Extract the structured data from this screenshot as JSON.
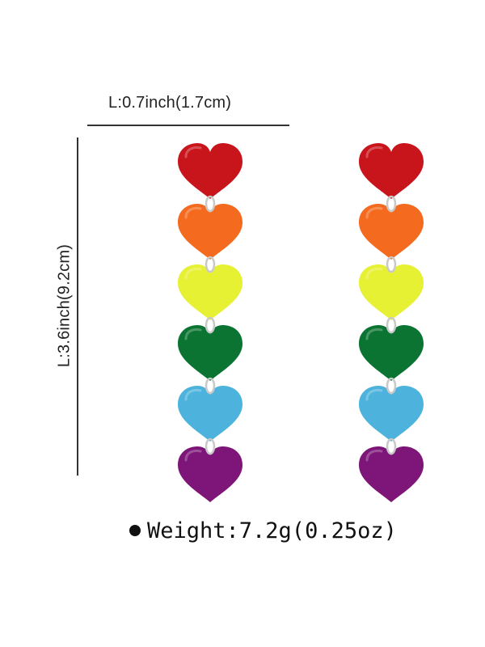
{
  "width_dimension": {
    "label": "L:0.7inch(1.7cm)"
  },
  "length_dimension": {
    "label": "L:3.6inch(9.2cm)"
  },
  "weight": {
    "label": "Weight:7.2g(0.25oz)"
  },
  "earring_count": 2,
  "hearts": [
    {
      "name": "red",
      "color": "#c8151c"
    },
    {
      "name": "orange",
      "color": "#f46a1e"
    },
    {
      "name": "yellow",
      "color": "#e6f133"
    },
    {
      "name": "green",
      "color": "#0b7433"
    },
    {
      "name": "blue",
      "color": "#4db3dc"
    },
    {
      "name": "purple",
      "color": "#7d1678"
    }
  ],
  "ring_color": "#c9c9c9"
}
